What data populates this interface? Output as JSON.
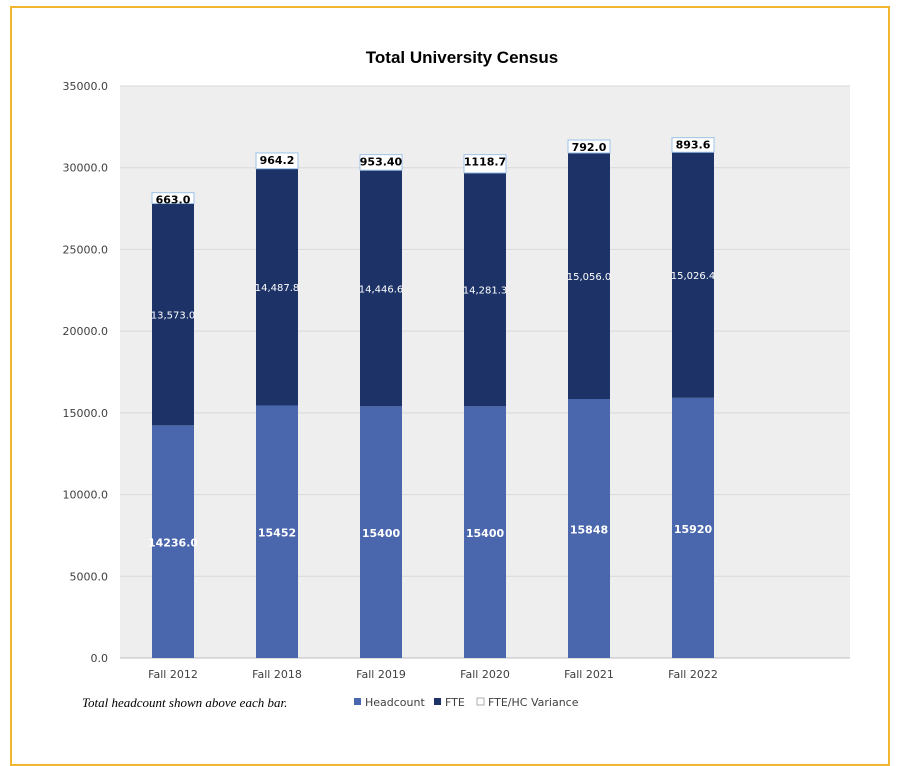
{
  "chart_data": {
    "type": "bar",
    "stacked": true,
    "title": "Total University Census",
    "categories": [
      "Fall 2012",
      "Fall 2018",
      "Fall 2019",
      "Fall 2020",
      "Fall 2021",
      "Fall 2022"
    ],
    "series": [
      {
        "name": "Headcount",
        "color": "#4a66ad",
        "values": [
          14236,
          15452,
          15400,
          15400,
          15848,
          15920
        ],
        "labels": [
          "14236.0",
          "15452",
          "15400",
          "15400",
          "15848",
          "15920"
        ]
      },
      {
        "name": "FTE",
        "color": "#1d3367",
        "values": [
          13573.0,
          14487.8,
          14446.6,
          14281.3,
          15056.0,
          15026.4
        ],
        "labels": [
          "13,573.0",
          "14,487.8",
          "14,446.6",
          "14,281.3",
          "15,056.0",
          "15,026.4"
        ]
      },
      {
        "name": "FTE/HC Variance",
        "color": "#ffffff",
        "values": [
          663.0,
          964.2,
          953.4,
          1118.7,
          792.0,
          893.6
        ],
        "labels": [
          "663.0",
          "964.2",
          "953.40",
          "1118.7",
          "792.0",
          "893.6"
        ]
      }
    ],
    "y_ticks": [
      "0.0",
      "5000.0",
      "10000.0",
      "15000.0",
      "20000.0",
      "25000.0",
      "30000.0",
      "35000.0"
    ],
    "ylim": [
      0,
      35000
    ],
    "grid": true,
    "legend": "bottom",
    "footnote": "Total headcount shown above each bar."
  }
}
